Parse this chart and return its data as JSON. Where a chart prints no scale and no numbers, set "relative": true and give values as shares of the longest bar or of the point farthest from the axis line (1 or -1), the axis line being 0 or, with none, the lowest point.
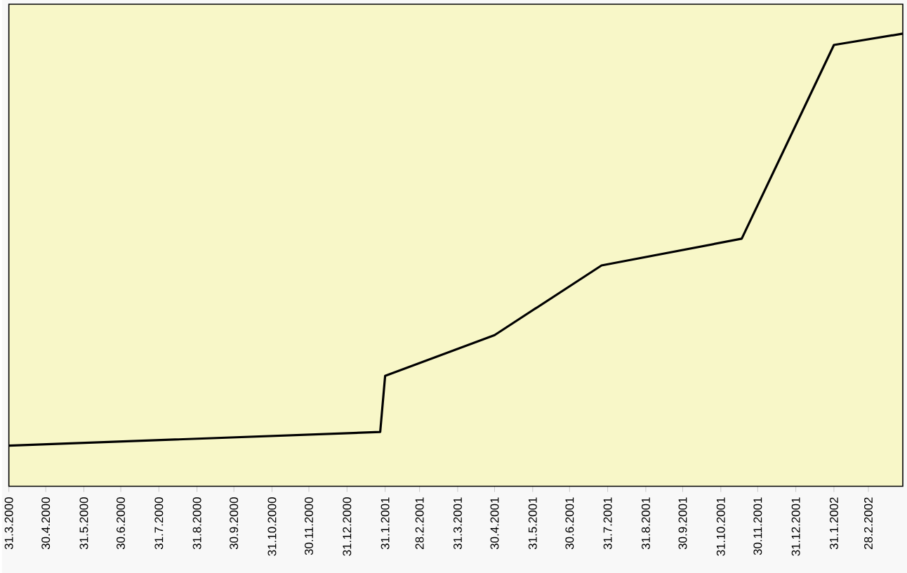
{
  "chart_data": {
    "type": "line",
    "relative": true,
    "color": "#000000",
    "x": [
      "2000-03-31",
      "2001-01-27",
      "2001-01-31",
      "2001-04-30",
      "2001-07-26",
      "2001-11-17",
      "2002-01-31",
      "2002-03-28"
    ],
    "values": [
      0.09,
      0.12,
      0.244,
      0.334,
      0.488,
      0.547,
      0.975,
      1
    ],
    "xlim": [
      "2000-03-31",
      "2002-03-28"
    ],
    "xticks": [
      {
        "value": "2000-03-31",
        "label": "31.3.2000"
      },
      {
        "value": "2000-04-30",
        "label": "30.4.2000"
      },
      {
        "value": "2000-05-31",
        "label": "31.5.2000"
      },
      {
        "value": "2000-06-30",
        "label": "30.6.2000"
      },
      {
        "value": "2000-07-31",
        "label": "31.7.2000"
      },
      {
        "value": "2000-08-31",
        "label": "31.8.2000"
      },
      {
        "value": "2000-09-30",
        "label": "30.9.2000"
      },
      {
        "value": "2000-10-31",
        "label": "31.10.2000"
      },
      {
        "value": "2000-11-30",
        "label": "30.11.2000"
      },
      {
        "value": "2000-12-31",
        "label": "31.12.2000"
      },
      {
        "value": "2001-01-31",
        "label": "31.1.2001"
      },
      {
        "value": "2001-02-28",
        "label": "28.2.2001"
      },
      {
        "value": "2001-03-31",
        "label": "31.3.2001"
      },
      {
        "value": "2001-04-30",
        "label": "30.4.2001"
      },
      {
        "value": "2001-05-31",
        "label": "31.5.2001"
      },
      {
        "value": "2001-06-30",
        "label": "30.6.2001"
      },
      {
        "value": "2001-07-31",
        "label": "31.7.2001"
      },
      {
        "value": "2001-08-31",
        "label": "31.8.2001"
      },
      {
        "value": "2001-09-30",
        "label": "30.9.2001"
      },
      {
        "value": "2001-10-31",
        "label": "31.10.2001"
      },
      {
        "value": "2001-11-30",
        "label": "30.11.2001"
      },
      {
        "value": "2001-12-31",
        "label": "31.12.2001"
      },
      {
        "value": "2002-01-31",
        "label": "31.1.2002"
      },
      {
        "value": "2002-02-28",
        "label": "28.2.2002"
      }
    ]
  }
}
